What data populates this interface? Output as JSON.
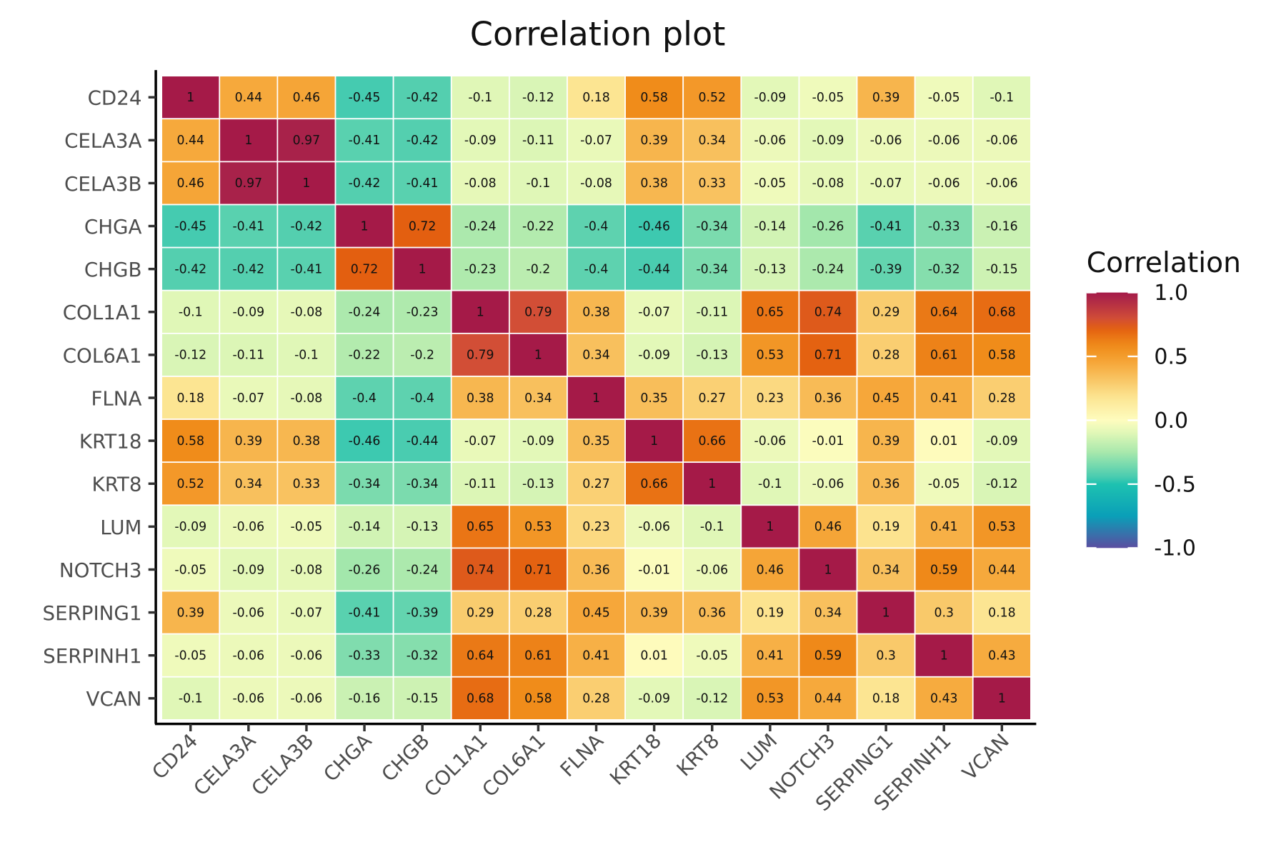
{
  "chart_data": {
    "type": "heatmap",
    "title": "Correlation plot",
    "xlabel": "",
    "ylabel": "",
    "x_categories": [
      "CD24",
      "CELA3A",
      "CELA3B",
      "CHGA",
      "CHGB",
      "COL1A1",
      "COL6A1",
      "FLNA",
      "KRT18",
      "KRT8",
      "LUM",
      "NOTCH3",
      "SERPING1",
      "SERPINH1",
      "VCAN"
    ],
    "y_categories": [
      "CD24",
      "CELA3A",
      "CELA3B",
      "CHGA",
      "CHGB",
      "COL1A1",
      "COL6A1",
      "FLNA",
      "KRT18",
      "KRT8",
      "LUM",
      "NOTCH3",
      "SERPING1",
      "SERPINH1",
      "VCAN"
    ],
    "values": [
      [
        1,
        0.44,
        0.46,
        -0.45,
        -0.42,
        -0.1,
        -0.12,
        0.18,
        0.58,
        0.52,
        -0.09,
        -0.05,
        0.39,
        -0.05,
        -0.1
      ],
      [
        0.44,
        1,
        0.97,
        -0.41,
        -0.42,
        -0.09,
        -0.11,
        -0.07,
        0.39,
        0.34,
        -0.06,
        -0.09,
        -0.06,
        -0.06,
        -0.06
      ],
      [
        0.46,
        0.97,
        1,
        -0.42,
        -0.41,
        -0.08,
        -0.1,
        -0.08,
        0.38,
        0.33,
        -0.05,
        -0.08,
        -0.07,
        -0.06,
        -0.06
      ],
      [
        -0.45,
        -0.41,
        -0.42,
        1,
        0.72,
        -0.24,
        -0.22,
        -0.4,
        -0.46,
        -0.34,
        -0.14,
        -0.26,
        -0.41,
        -0.33,
        -0.16
      ],
      [
        -0.42,
        -0.42,
        -0.41,
        0.72,
        1,
        -0.23,
        -0.2,
        -0.4,
        -0.44,
        -0.34,
        -0.13,
        -0.24,
        -0.39,
        -0.32,
        -0.15
      ],
      [
        -0.1,
        -0.09,
        -0.08,
        -0.24,
        -0.23,
        1,
        0.79,
        0.38,
        -0.07,
        -0.11,
        0.65,
        0.74,
        0.29,
        0.64,
        0.68
      ],
      [
        -0.12,
        -0.11,
        -0.1,
        -0.22,
        -0.2,
        0.79,
        1,
        0.34,
        -0.09,
        -0.13,
        0.53,
        0.71,
        0.28,
        0.61,
        0.58
      ],
      [
        0.18,
        -0.07,
        -0.08,
        -0.4,
        -0.4,
        0.38,
        0.34,
        1,
        0.35,
        0.27,
        0.23,
        0.36,
        0.45,
        0.41,
        0.28
      ],
      [
        0.58,
        0.39,
        0.38,
        -0.46,
        -0.44,
        -0.07,
        -0.09,
        0.35,
        1,
        0.66,
        -0.06,
        -0.01,
        0.39,
        0.01,
        -0.09
      ],
      [
        0.52,
        0.34,
        0.33,
        -0.34,
        -0.34,
        -0.11,
        -0.13,
        0.27,
        0.66,
        1,
        -0.1,
        -0.06,
        0.36,
        -0.05,
        -0.12
      ],
      [
        -0.09,
        -0.06,
        -0.05,
        -0.14,
        -0.13,
        0.65,
        0.53,
        0.23,
        -0.06,
        -0.1,
        1,
        0.46,
        0.19,
        0.41,
        0.53
      ],
      [
        -0.05,
        -0.09,
        -0.08,
        -0.26,
        -0.24,
        0.74,
        0.71,
        0.36,
        -0.01,
        -0.06,
        0.46,
        1,
        0.34,
        0.59,
        0.44
      ],
      [
        0.39,
        -0.06,
        -0.07,
        -0.41,
        -0.39,
        0.29,
        0.28,
        0.45,
        0.39,
        0.36,
        0.19,
        0.34,
        1,
        0.3,
        0.18
      ],
      [
        -0.05,
        -0.06,
        -0.06,
        -0.33,
        -0.32,
        0.64,
        0.61,
        0.41,
        0.01,
        -0.05,
        0.41,
        0.59,
        0.3,
        1,
        0.43
      ],
      [
        -0.1,
        -0.06,
        -0.06,
        -0.16,
        -0.15,
        0.68,
        0.58,
        0.28,
        -0.09,
        -0.12,
        0.53,
        0.44,
        0.18,
        0.43,
        1
      ]
    ],
    "color_range": [
      -1,
      1
    ],
    "color_stops": [
      [
        -1,
        "#5b4da0"
      ],
      [
        -0.75,
        "#0a9fb8"
      ],
      [
        -0.5,
        "#1ec2b0"
      ],
      [
        -0.45,
        "#45cbb0"
      ],
      [
        -0.25,
        "#a8e8ac"
      ],
      [
        -0.1,
        "#e0f7b7"
      ],
      [
        0,
        "#fefcbe"
      ],
      [
        0.18,
        "#fce592"
      ],
      [
        0.44,
        "#f6a93c"
      ],
      [
        0.58,
        "#f08c1a"
      ],
      [
        0.72,
        "#e35f10"
      ],
      [
        0.79,
        "#d24e36"
      ],
      [
        0.97,
        "#a8224a"
      ],
      [
        1,
        "#a51a48"
      ]
    ],
    "legend": {
      "title": "Correlation",
      "placement": "right",
      "ticks": [
        1.0,
        0.5,
        0.0,
        -0.5,
        -1.0
      ],
      "tick_labels": [
        "1.0",
        "0.5",
        "0.0",
        "-0.5",
        "-1.0"
      ]
    },
    "cell_labels": true,
    "grid": false
  }
}
